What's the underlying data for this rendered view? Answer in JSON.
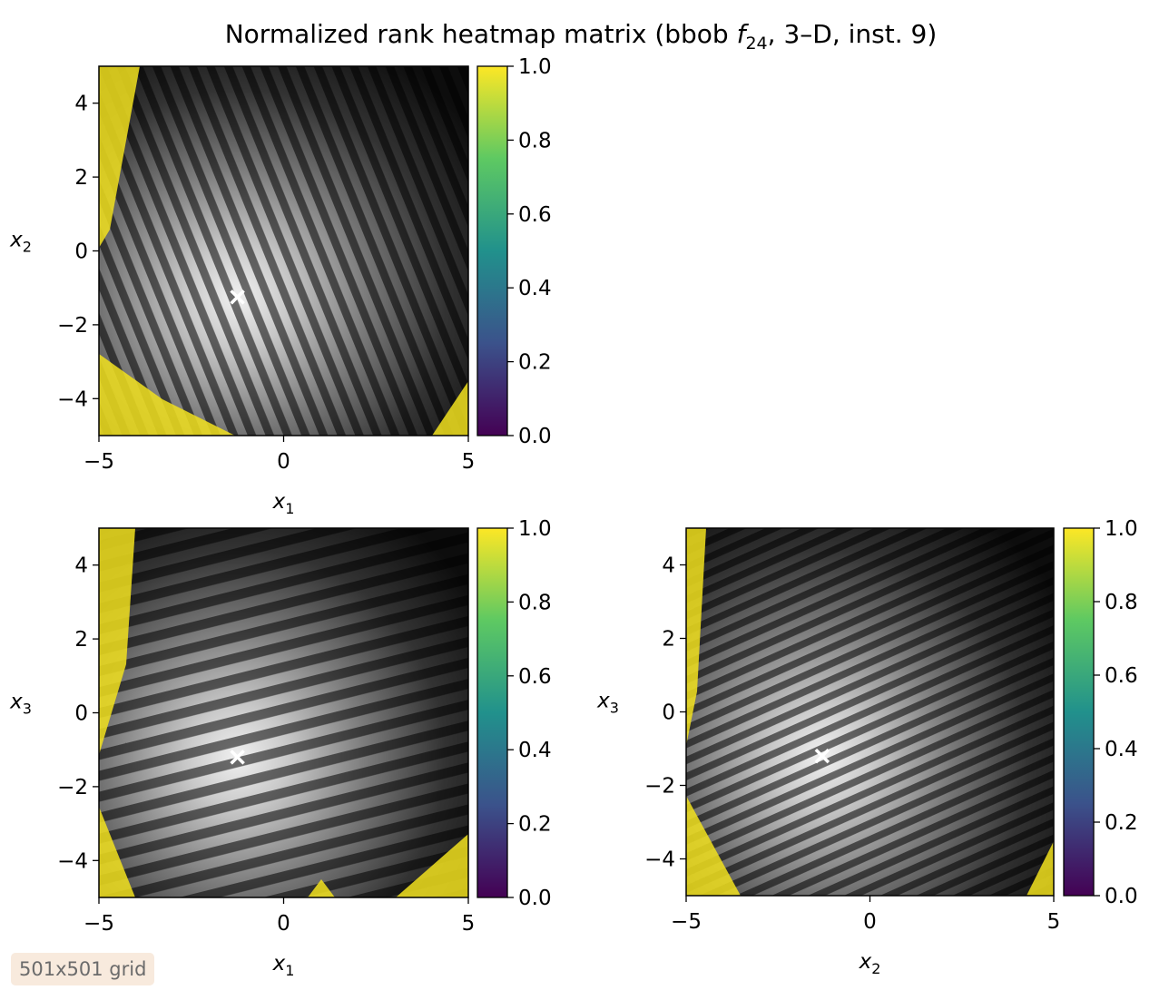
{
  "chart_data": {
    "type": "heatmap",
    "title": "Normalized rank heatmap matrix (bbob f24, 3–D, inst. 9)",
    "title_parts": {
      "prefix": "Normalized rank heatmap matrix (bbob ",
      "fname": "f",
      "fsub": "24",
      "suffix": ", 3–D, inst. 9)"
    },
    "colormap": "viridis",
    "colorbar_ticks": [
      "0.0",
      "0.2",
      "0.4",
      "0.6",
      "0.8",
      "1.0"
    ],
    "colorbar_range": [
      0,
      1
    ],
    "colors": {
      "viridis_low": "#440154",
      "viridis_high": "#fde725",
      "marker": "#ffffff"
    },
    "panels": [
      {
        "id": "x1-x2",
        "x_var": "x",
        "x_sub": "1",
        "y_var": "x",
        "y_sub": "2",
        "xlim": [
          -5,
          5
        ],
        "ylim": [
          -5,
          5
        ],
        "xticks": [
          "−5",
          "0",
          "5"
        ],
        "yticks": [
          "−4",
          "−2",
          "0",
          "2",
          "4"
        ],
        "optimum": [
          -1.25,
          -1.25
        ],
        "stripe_angle_deg": -22,
        "stripe_period": 0.45
      },
      {
        "id": "x1-x3",
        "x_var": "x",
        "x_sub": "1",
        "y_var": "x",
        "y_sub": "3",
        "xlim": [
          -5,
          5
        ],
        "ylim": [
          -5,
          5
        ],
        "xticks": [
          "−5",
          "0",
          "5"
        ],
        "yticks": [
          "−4",
          "−2",
          "0",
          "2",
          "4"
        ],
        "optimum": [
          -1.25,
          -1.2
        ],
        "stripe_angle_deg": 76,
        "stripe_period": 0.55
      },
      {
        "id": "x2-x3",
        "x_var": "x",
        "x_sub": "2",
        "y_var": "x",
        "y_sub": "3",
        "xlim": [
          -5,
          5
        ],
        "ylim": [
          -5,
          5
        ],
        "xticks": [
          "−5",
          "0",
          "5"
        ],
        "yticks": [
          "−4",
          "−2",
          "0",
          "2",
          "4"
        ],
        "optimum": [
          -1.3,
          -1.2
        ],
        "stripe_angle_deg": 66,
        "stripe_period": 0.4
      }
    ],
    "footnote": "501x501 grid"
  }
}
